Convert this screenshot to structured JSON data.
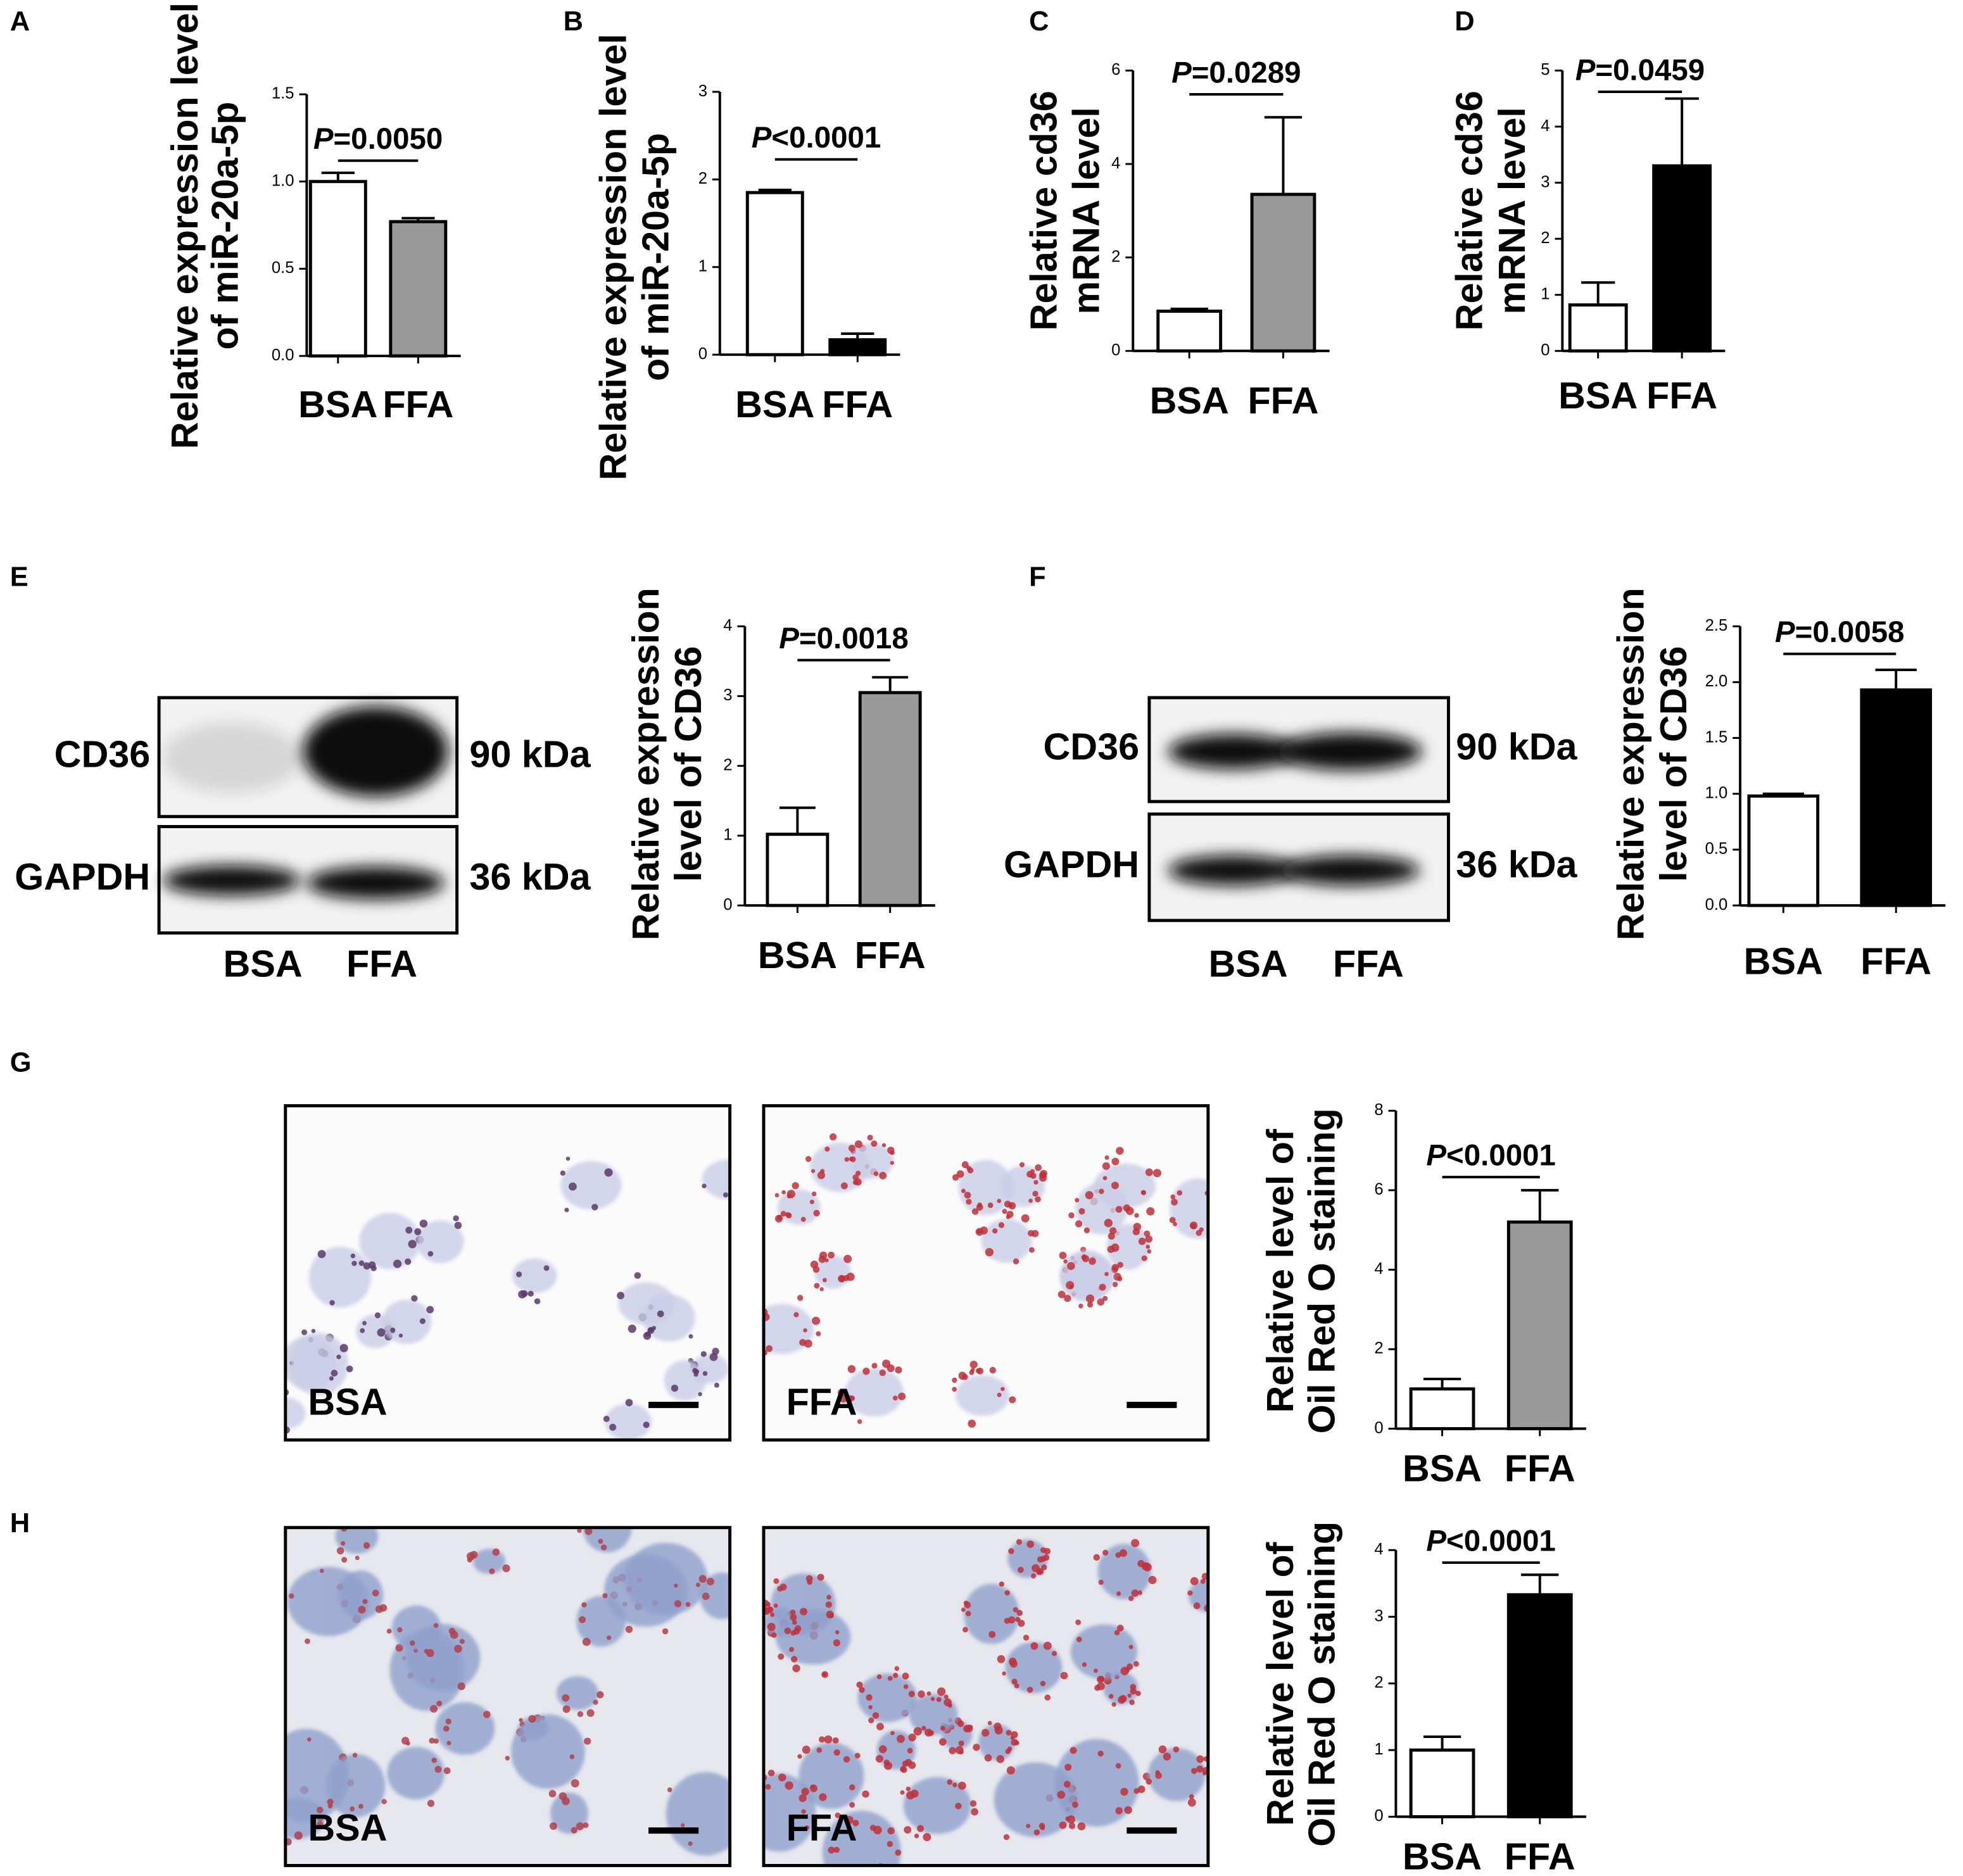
{
  "panels": [
    "A",
    "B",
    "C",
    "D",
    "E",
    "F",
    "G",
    "H"
  ],
  "chart_data": [
    {
      "type": "bar",
      "y_label": [
        "Relative expression level",
        "of miR-20a-5p"
      ],
      "categories": [
        "BSA",
        "FFA"
      ],
      "values": [
        1.0,
        0.77
      ],
      "errors": [
        0.05,
        0.02
      ],
      "colors": [
        "#ffffff",
        "#999999"
      ],
      "annotation": {
        "symbol": "P",
        "text": "=0.0050"
      },
      "ylim": [
        0,
        1.5
      ],
      "yticks": [
        {
          "value": 0,
          "label": "0.0"
        },
        0.5,
        {
          "value": 1,
          "label": "1.0"
        },
        1.5
      ]
    },
    {
      "type": "bar",
      "y_label": [
        "Relative expression level",
        "of miR-20a-5p"
      ],
      "categories": [
        "BSA",
        "FFA"
      ],
      "values": [
        1.85,
        0.17
      ],
      "errors": [
        0.03,
        0.07
      ],
      "colors": [
        "#ffffff",
        "#000000"
      ],
      "annotation": {
        "symbol": "P",
        "text": "<0.0001"
      },
      "ylim": [
        0,
        3
      ],
      "yticks": [
        0,
        1,
        2,
        3
      ]
    },
    {
      "type": "bar",
      "y_label": [
        "Relative cd36",
        "mRNA level"
      ],
      "categories": [
        "BSA",
        "FFA"
      ],
      "values": [
        0.85,
        3.35
      ],
      "errors": [
        0.05,
        1.65
      ],
      "colors": [
        "#ffffff",
        "#999999"
      ],
      "annotation": {
        "symbol": "P",
        "text": "=0.0289"
      },
      "ylim": [
        0,
        6
      ],
      "yticks": [
        0,
        2,
        4,
        6
      ]
    },
    {
      "type": "bar",
      "y_label": [
        "Relative cd36",
        "mRNA level"
      ],
      "categories": [
        "BSA",
        "FFA"
      ],
      "values": [
        0.82,
        3.3
      ],
      "errors": [
        0.4,
        1.2
      ],
      "colors": [
        "#ffffff",
        "#000000"
      ],
      "annotation": {
        "symbol": "P",
        "text": "=0.0459"
      },
      "ylim": [
        0,
        5
      ],
      "yticks": [
        0,
        1,
        2,
        3,
        4,
        5
      ]
    },
    {
      "type": "bar",
      "y_label": [
        "Relative expression",
        "level of CD36"
      ],
      "categories": [
        "BSA",
        "FFA"
      ],
      "values": [
        1.02,
        3.05
      ],
      "errors": [
        0.38,
        0.22
      ],
      "colors": [
        "#ffffff",
        "#999999"
      ],
      "annotation": {
        "symbol": "P",
        "text": "=0.0018"
      },
      "ylim": [
        0,
        4
      ],
      "yticks": [
        0,
        1,
        2,
        3,
        4
      ]
    },
    {
      "type": "bar",
      "y_label": [
        "Relative expression",
        "level of CD36"
      ],
      "categories": [
        "BSA",
        "FFA"
      ],
      "values": [
        0.98,
        1.93
      ],
      "errors": [
        0.02,
        0.18
      ],
      "colors": [
        "#ffffff",
        "#000000"
      ],
      "annotation": {
        "symbol": "P",
        "text": "=0.0058"
      },
      "ylim": [
        0,
        2.5
      ],
      "yticks": [
        {
          "value": 0,
          "label": "0.0"
        },
        0.5,
        {
          "value": 1,
          "label": "1.0"
        },
        1.5,
        {
          "value": 2,
          "label": "2.0"
        },
        2.5
      ]
    },
    {
      "type": "bar",
      "y_label": [
        "Relative level of",
        "Oil Red O staining"
      ],
      "categories": [
        "BSA",
        "FFA"
      ],
      "values": [
        1.0,
        5.2
      ],
      "errors": [
        0.25,
        0.8
      ],
      "colors": [
        "#ffffff",
        "#999999"
      ],
      "annotation": {
        "symbol": "P",
        "text": "<0.0001"
      },
      "ylim": [
        0,
        8
      ],
      "yticks": [
        0,
        2,
        4,
        6,
        8
      ]
    },
    {
      "type": "bar",
      "y_label": [
        "Relative level of",
        "Oil Red O staining"
      ],
      "categories": [
        "BSA",
        "FFA"
      ],
      "values": [
        1.0,
        3.33
      ],
      "errors": [
        0.2,
        0.3
      ],
      "colors": [
        "#ffffff",
        "#000000"
      ],
      "annotation": {
        "symbol": "P",
        "text": "<0.0001"
      },
      "ylim": [
        0,
        4
      ],
      "yticks": [
        0,
        1,
        2,
        3,
        4
      ]
    }
  ],
  "blots": [
    {
      "bands": [
        "CD36",
        "GAPDH"
      ],
      "sizes": [
        "90 kDa",
        "36 kDa"
      ],
      "lanes": [
        "BSA",
        "FFA"
      ]
    },
    {
      "bands": [
        "CD36",
        "GAPDH"
      ],
      "sizes": [
        "90 kDa",
        "36 kDa"
      ],
      "lanes": [
        "BSA",
        "FFA"
      ]
    }
  ],
  "micrographs": [
    {
      "labels": [
        "BSA",
        "FFA"
      ]
    },
    {
      "labels": [
        "BSA",
        "FFA"
      ]
    }
  ]
}
